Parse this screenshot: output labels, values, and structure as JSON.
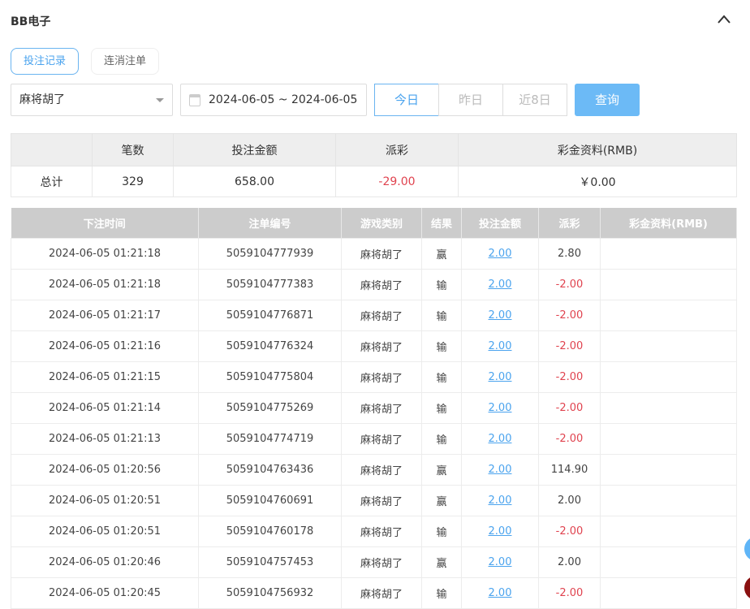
{
  "header": {
    "title": "BB电子"
  },
  "tabs": [
    {
      "label": "投注记录",
      "active": true
    },
    {
      "label": "连消注单",
      "active": false
    }
  ],
  "filters": {
    "game": "麻将胡了",
    "date_range": "2024-06-05 ~ 2024-06-05",
    "quick": [
      "今日",
      "昨日",
      "近8日"
    ],
    "query": "查询"
  },
  "summary": {
    "headers": [
      "",
      "笔数",
      "投注金额",
      "派彩",
      "彩金资料(RMB)"
    ],
    "row": [
      "总计",
      "329",
      "658.00",
      "-29.00",
      "￥0.00"
    ]
  },
  "list": {
    "headers": [
      "下注时间",
      "注单编号",
      "游戏类别",
      "结果",
      "投注金额",
      "派彩",
      "彩金资料(RMB)"
    ],
    "rows": [
      [
        "2024-06-05 01:21:18",
        "5059104777939",
        "麻将胡了",
        "赢",
        "2.00",
        "2.80",
        ""
      ],
      [
        "2024-06-05 01:21:18",
        "5059104777383",
        "麻将胡了",
        "输",
        "2.00",
        "-2.00",
        ""
      ],
      [
        "2024-06-05 01:21:17",
        "5059104776871",
        "麻将胡了",
        "输",
        "2.00",
        "-2.00",
        ""
      ],
      [
        "2024-06-05 01:21:16",
        "5059104776324",
        "麻将胡了",
        "输",
        "2.00",
        "-2.00",
        ""
      ],
      [
        "2024-06-05 01:21:15",
        "5059104775804",
        "麻将胡了",
        "输",
        "2.00",
        "-2.00",
        ""
      ],
      [
        "2024-06-05 01:21:14",
        "5059104775269",
        "麻将胡了",
        "输",
        "2.00",
        "-2.00",
        ""
      ],
      [
        "2024-06-05 01:21:13",
        "5059104774719",
        "麻将胡了",
        "输",
        "2.00",
        "-2.00",
        ""
      ],
      [
        "2024-06-05 01:20:56",
        "5059104763436",
        "麻将胡了",
        "赢",
        "2.00",
        "114.90",
        ""
      ],
      [
        "2024-06-05 01:20:51",
        "5059104760691",
        "麻将胡了",
        "赢",
        "2.00",
        "2.00",
        ""
      ],
      [
        "2024-06-05 01:20:51",
        "5059104760178",
        "麻将胡了",
        "输",
        "2.00",
        "-2.00",
        ""
      ],
      [
        "2024-06-05 01:20:46",
        "5059104757453",
        "麻将胡了",
        "赢",
        "2.00",
        "2.00",
        ""
      ],
      [
        "2024-06-05 01:20:45",
        "5059104756932",
        "麻将胡了",
        "输",
        "2.00",
        "-2.00",
        ""
      ]
    ]
  },
  "colors": {
    "accent": "#4aa3ee",
    "negative": "#e0434f",
    "query_button": "#6cbaf6"
  }
}
